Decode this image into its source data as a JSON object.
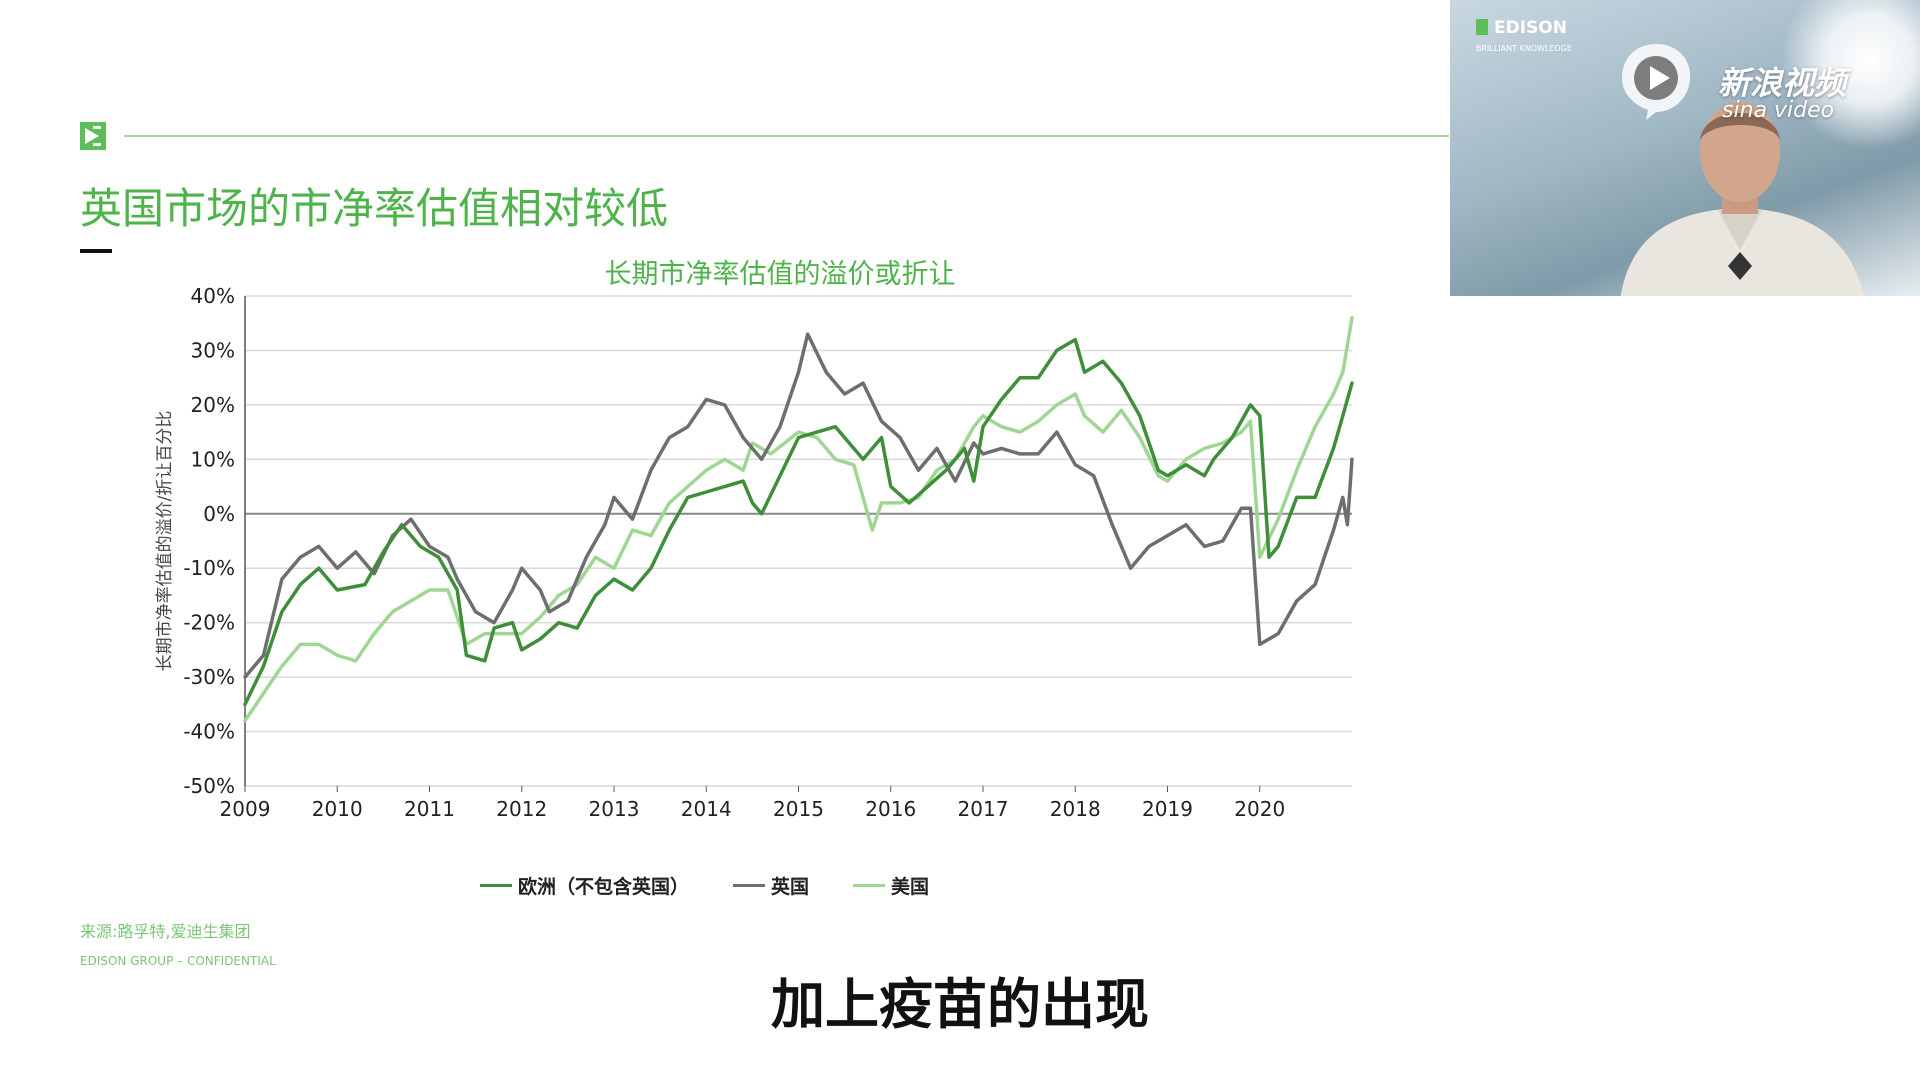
{
  "slide": {
    "title": "英国市场的市净率估值相对较低",
    "source": "来源:路孚特,爱迪生集团",
    "footer": "EDISON GROUP – CONFIDENTIAL",
    "subtitle": "加上疫苗的出现"
  },
  "video": {
    "logo": "EDISON",
    "tagline": "BRILLIANT KNOWLEDGE",
    "watermark_cn": "新浪视频",
    "watermark_en": "sina video"
  },
  "colors": {
    "accent": "#4db34a",
    "europe": "#3e8e3a",
    "uk": "#6e6e6e",
    "us": "#9fd693"
  },
  "chart_data": {
    "type": "line",
    "title": "长期市净率估值的溢价或折让",
    "ylabel": "长期市净率估值的溢价/折让百分比",
    "xlabel": "",
    "xlim": [
      2009,
      2021.0
    ],
    "ylim": [
      -50,
      40
    ],
    "yticks": [
      "40%",
      "30%",
      "20%",
      "10%",
      "0%",
      "-10%",
      "-20%",
      "-30%",
      "-40%",
      "-50%"
    ],
    "xticks": [
      "2009",
      "2010",
      "2011",
      "2012",
      "2013",
      "2014",
      "2015",
      "2016",
      "2017",
      "2018",
      "2019",
      "2020"
    ],
    "grid": "horizontal",
    "legend": "bottom",
    "series": [
      {
        "name": "欧洲（不包含英国）",
        "color": "#3e8e3a",
        "points": [
          [
            2009.0,
            -35
          ],
          [
            2009.2,
            -28
          ],
          [
            2009.4,
            -18
          ],
          [
            2009.6,
            -13
          ],
          [
            2009.8,
            -10
          ],
          [
            2010.0,
            -14
          ],
          [
            2010.3,
            -13
          ],
          [
            2010.5,
            -7
          ],
          [
            2010.7,
            -2
          ],
          [
            2010.9,
            -6
          ],
          [
            2011.1,
            -8
          ],
          [
            2011.3,
            -14
          ],
          [
            2011.4,
            -26
          ],
          [
            2011.6,
            -27
          ],
          [
            2011.7,
            -21
          ],
          [
            2011.9,
            -20
          ],
          [
            2012.0,
            -25
          ],
          [
            2012.2,
            -23
          ],
          [
            2012.4,
            -20
          ],
          [
            2012.6,
            -21
          ],
          [
            2012.8,
            -15
          ],
          [
            2013.0,
            -12
          ],
          [
            2013.2,
            -14
          ],
          [
            2013.4,
            -10
          ],
          [
            2013.6,
            -3
          ],
          [
            2013.8,
            3
          ],
          [
            2014.0,
            4
          ],
          [
            2014.2,
            5
          ],
          [
            2014.4,
            6
          ],
          [
            2014.5,
            2
          ],
          [
            2014.6,
            0
          ],
          [
            2014.8,
            7
          ],
          [
            2015.0,
            14
          ],
          [
            2015.2,
            15
          ],
          [
            2015.4,
            16
          ],
          [
            2015.5,
            14
          ],
          [
            2015.7,
            10
          ],
          [
            2015.9,
            14
          ],
          [
            2016.0,
            5
          ],
          [
            2016.2,
            2
          ],
          [
            2016.4,
            5
          ],
          [
            2016.6,
            8
          ],
          [
            2016.8,
            12
          ],
          [
            2016.9,
            6
          ],
          [
            2017.0,
            16
          ],
          [
            2017.2,
            21
          ],
          [
            2017.4,
            25
          ],
          [
            2017.6,
            25
          ],
          [
            2017.8,
            30
          ],
          [
            2018.0,
            32
          ],
          [
            2018.1,
            26
          ],
          [
            2018.3,
            28
          ],
          [
            2018.5,
            24
          ],
          [
            2018.7,
            18
          ],
          [
            2018.9,
            8
          ],
          [
            2019.0,
            7
          ],
          [
            2019.2,
            9
          ],
          [
            2019.4,
            7
          ],
          [
            2019.5,
            10
          ],
          [
            2019.7,
            14
          ],
          [
            2019.9,
            20
          ],
          [
            2020.0,
            18
          ],
          [
            2020.1,
            -8
          ],
          [
            2020.2,
            -6
          ],
          [
            2020.4,
            3
          ],
          [
            2020.6,
            3
          ],
          [
            2020.8,
            12
          ],
          [
            2020.9,
            18
          ],
          [
            2021.0,
            24
          ]
        ]
      },
      {
        "name": "英国",
        "color": "#6e6e6e",
        "points": [
          [
            2009.0,
            -30
          ],
          [
            2009.2,
            -26
          ],
          [
            2009.4,
            -12
          ],
          [
            2009.6,
            -8
          ],
          [
            2009.8,
            -6
          ],
          [
            2010.0,
            -10
          ],
          [
            2010.2,
            -7
          ],
          [
            2010.4,
            -11
          ],
          [
            2010.6,
            -4
          ],
          [
            2010.8,
            -1
          ],
          [
            2011.0,
            -6
          ],
          [
            2011.2,
            -8
          ],
          [
            2011.3,
            -12
          ],
          [
            2011.5,
            -18
          ],
          [
            2011.7,
            -20
          ],
          [
            2011.9,
            -14
          ],
          [
            2012.0,
            -10
          ],
          [
            2012.2,
            -14
          ],
          [
            2012.3,
            -18
          ],
          [
            2012.5,
            -16
          ],
          [
            2012.7,
            -8
          ],
          [
            2012.9,
            -2
          ],
          [
            2013.0,
            3
          ],
          [
            2013.2,
            -1
          ],
          [
            2013.4,
            8
          ],
          [
            2013.6,
            14
          ],
          [
            2013.8,
            16
          ],
          [
            2014.0,
            21
          ],
          [
            2014.2,
            20
          ],
          [
            2014.4,
            14
          ],
          [
            2014.6,
            10
          ],
          [
            2014.8,
            16
          ],
          [
            2015.0,
            26
          ],
          [
            2015.1,
            33
          ],
          [
            2015.3,
            26
          ],
          [
            2015.5,
            22
          ],
          [
            2015.7,
            24
          ],
          [
            2015.9,
            17
          ],
          [
            2016.1,
            14
          ],
          [
            2016.3,
            8
          ],
          [
            2016.5,
            12
          ],
          [
            2016.7,
            6
          ],
          [
            2016.9,
            13
          ],
          [
            2017.0,
            11
          ],
          [
            2017.2,
            12
          ],
          [
            2017.4,
            11
          ],
          [
            2017.6,
            11
          ],
          [
            2017.8,
            15
          ],
          [
            2018.0,
            9
          ],
          [
            2018.2,
            7
          ],
          [
            2018.4,
            -2
          ],
          [
            2018.6,
            -10
          ],
          [
            2018.8,
            -6
          ],
          [
            2019.0,
            -4
          ],
          [
            2019.2,
            -2
          ],
          [
            2019.4,
            -6
          ],
          [
            2019.6,
            -5
          ],
          [
            2019.8,
            1
          ],
          [
            2019.9,
            1
          ],
          [
            2020.0,
            -24
          ],
          [
            2020.2,
            -22
          ],
          [
            2020.4,
            -16
          ],
          [
            2020.6,
            -13
          ],
          [
            2020.8,
            -3
          ],
          [
            2020.9,
            3
          ],
          [
            2020.95,
            -2
          ],
          [
            2021.0,
            10
          ]
        ]
      },
      {
        "name": "美国",
        "color": "#9fd693",
        "points": [
          [
            2009.0,
            -38
          ],
          [
            2009.2,
            -33
          ],
          [
            2009.4,
            -28
          ],
          [
            2009.6,
            -24
          ],
          [
            2009.8,
            -24
          ],
          [
            2010.0,
            -26
          ],
          [
            2010.2,
            -27
          ],
          [
            2010.4,
            -22
          ],
          [
            2010.6,
            -18
          ],
          [
            2010.8,
            -16
          ],
          [
            2011.0,
            -14
          ],
          [
            2011.2,
            -14
          ],
          [
            2011.4,
            -24
          ],
          [
            2011.6,
            -22
          ],
          [
            2011.8,
            -22
          ],
          [
            2012.0,
            -22
          ],
          [
            2012.2,
            -19
          ],
          [
            2012.4,
            -15
          ],
          [
            2012.6,
            -13
          ],
          [
            2012.8,
            -8
          ],
          [
            2013.0,
            -10
          ],
          [
            2013.2,
            -3
          ],
          [
            2013.4,
            -4
          ],
          [
            2013.6,
            2
          ],
          [
            2013.8,
            5
          ],
          [
            2014.0,
            8
          ],
          [
            2014.2,
            10
          ],
          [
            2014.4,
            8
          ],
          [
            2014.5,
            13
          ],
          [
            2014.7,
            11
          ],
          [
            2015.0,
            15
          ],
          [
            2015.2,
            14
          ],
          [
            2015.4,
            10
          ],
          [
            2015.6,
            9
          ],
          [
            2015.8,
            -3
          ],
          [
            2015.9,
            2
          ],
          [
            2016.1,
            2
          ],
          [
            2016.3,
            3
          ],
          [
            2016.5,
            8
          ],
          [
            2016.7,
            10
          ],
          [
            2016.9,
            16
          ],
          [
            2017.0,
            18
          ],
          [
            2017.2,
            16
          ],
          [
            2017.4,
            15
          ],
          [
            2017.6,
            17
          ],
          [
            2017.8,
            20
          ],
          [
            2018.0,
            22
          ],
          [
            2018.1,
            18
          ],
          [
            2018.3,
            15
          ],
          [
            2018.5,
            19
          ],
          [
            2018.7,
            14
          ],
          [
            2018.9,
            7
          ],
          [
            2019.0,
            6
          ],
          [
            2019.2,
            10
          ],
          [
            2019.4,
            12
          ],
          [
            2019.6,
            13
          ],
          [
            2019.8,
            15
          ],
          [
            2019.9,
            17
          ],
          [
            2020.0,
            -8
          ],
          [
            2020.2,
            -1
          ],
          [
            2020.4,
            8
          ],
          [
            2020.6,
            16
          ],
          [
            2020.8,
            22
          ],
          [
            2020.9,
            26
          ],
          [
            2021.0,
            36
          ]
        ]
      }
    ]
  }
}
